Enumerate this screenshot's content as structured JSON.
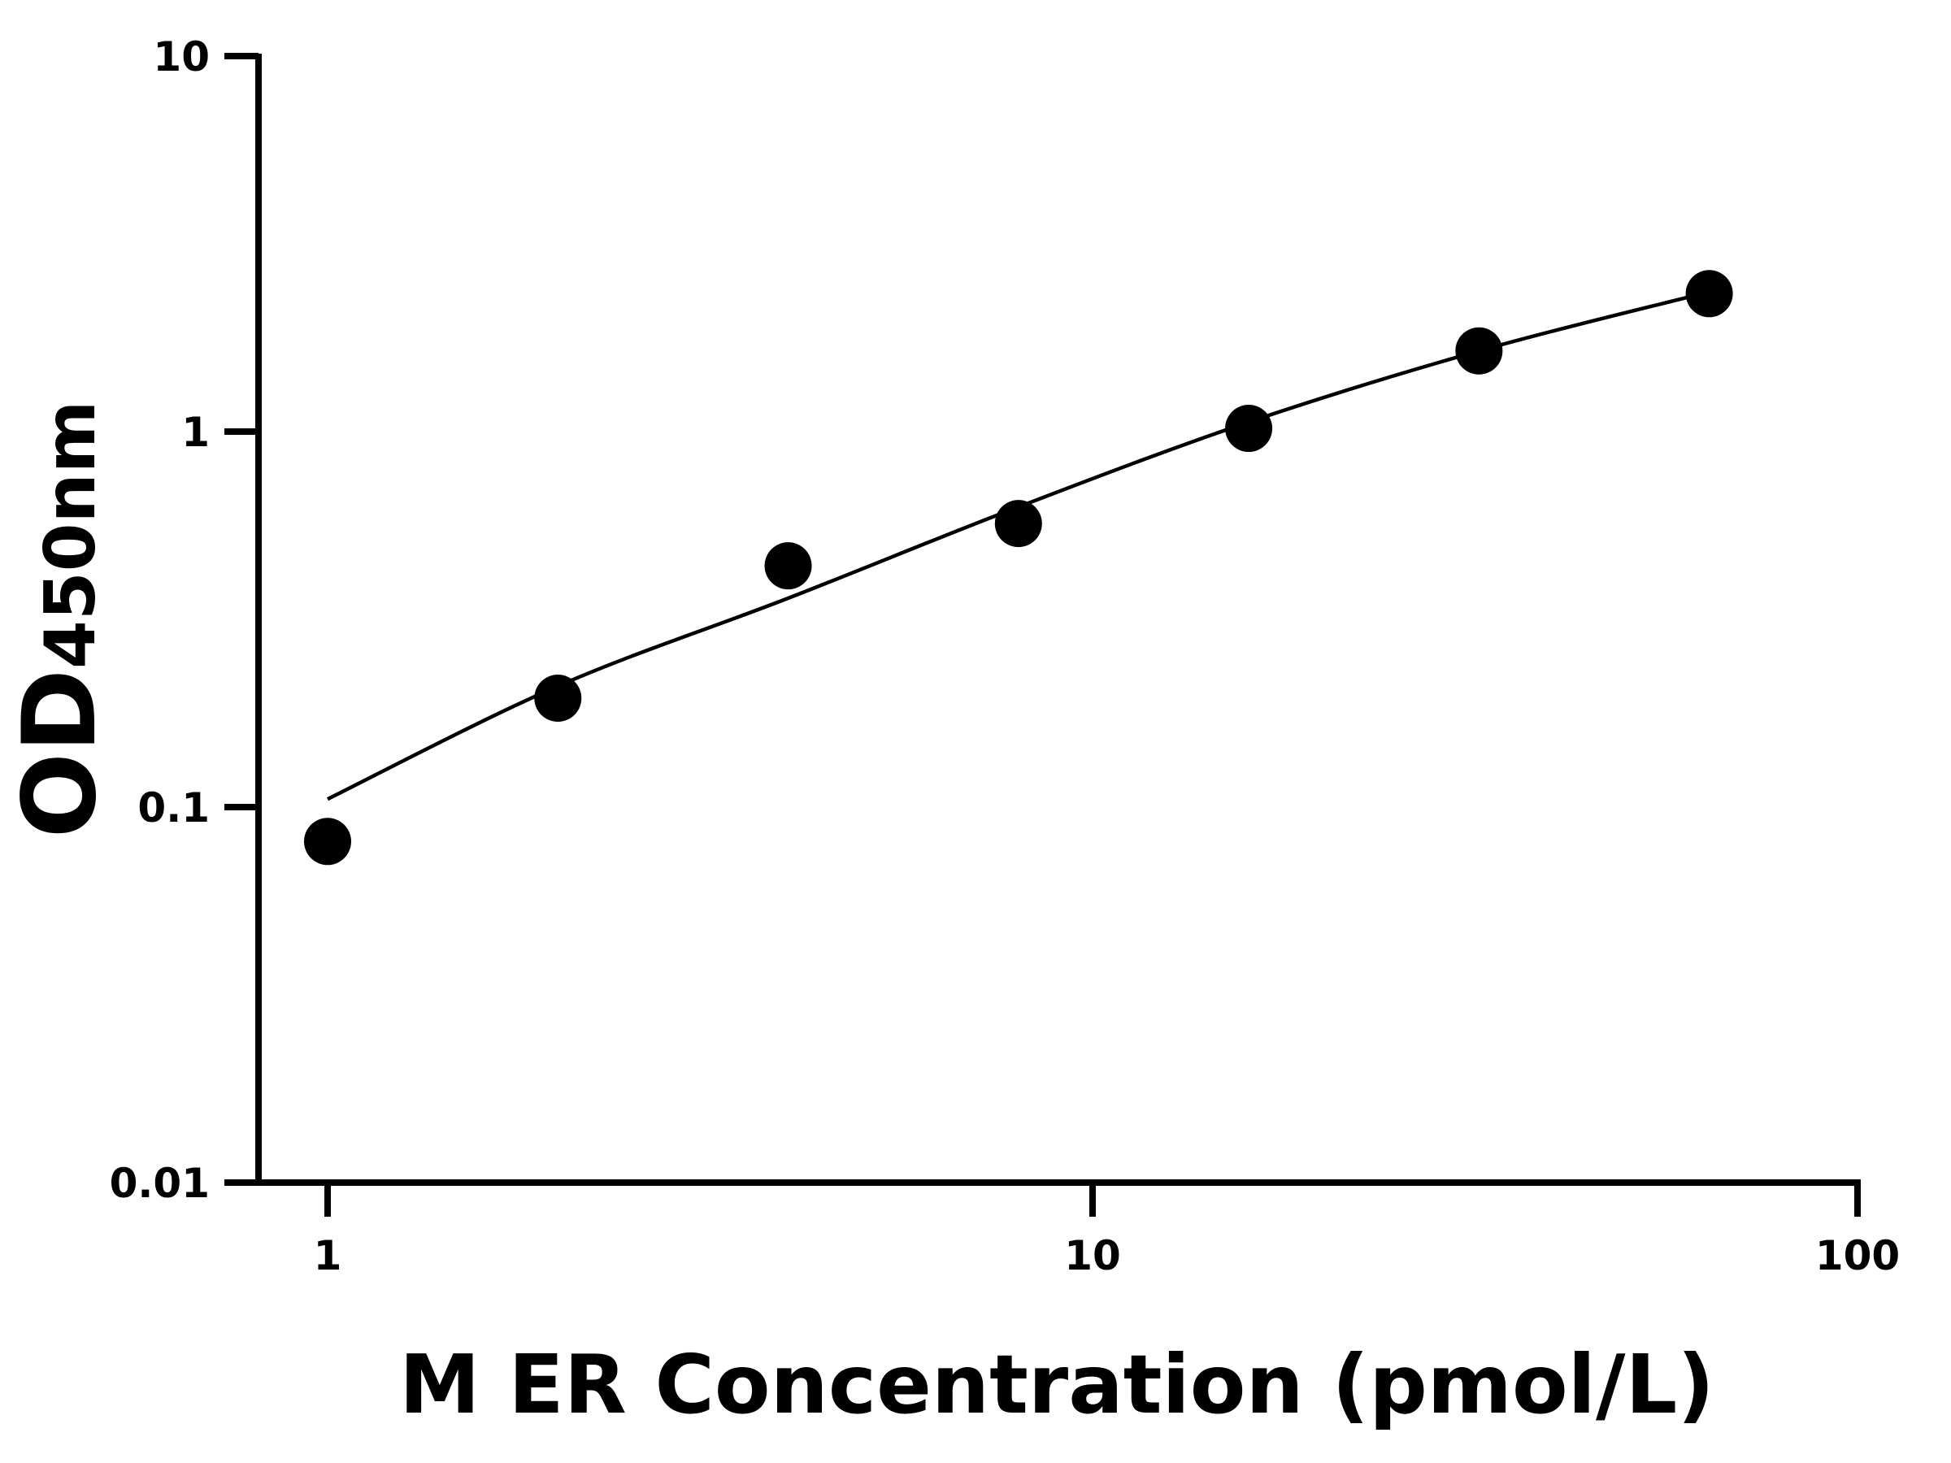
{
  "chart_data": {
    "type": "scatter",
    "title": "",
    "xlabel": "M ER Concentration (pmol/L)",
    "ylabel_main": "OD",
    "ylabel_sub": "450nm",
    "xscale": "log",
    "yscale": "log",
    "xlim": [
      0.8,
      100
    ],
    "ylim": [
      0.01,
      10
    ],
    "x_ticks": [
      1,
      10,
      100
    ],
    "x_tick_labels": [
      "1",
      "10",
      "100"
    ],
    "y_ticks": [
      0.01,
      0.1,
      1,
      10
    ],
    "y_tick_labels": [
      "0.01",
      "0.1",
      "1",
      "10"
    ],
    "grid": false,
    "legend": "none",
    "color": "#000000",
    "points": {
      "x": [
        1,
        2,
        4,
        8,
        16,
        32,
        64
      ],
      "y": [
        0.081,
        0.195,
        0.439,
        0.569,
        1.02,
        1.64,
        2.33
      ]
    },
    "fit_curve": {
      "x": [
        1,
        2,
        4,
        8,
        16,
        32,
        60
      ],
      "y": [
        0.105,
        0.21,
        0.36,
        0.63,
        1.06,
        1.64,
        2.28
      ]
    }
  }
}
